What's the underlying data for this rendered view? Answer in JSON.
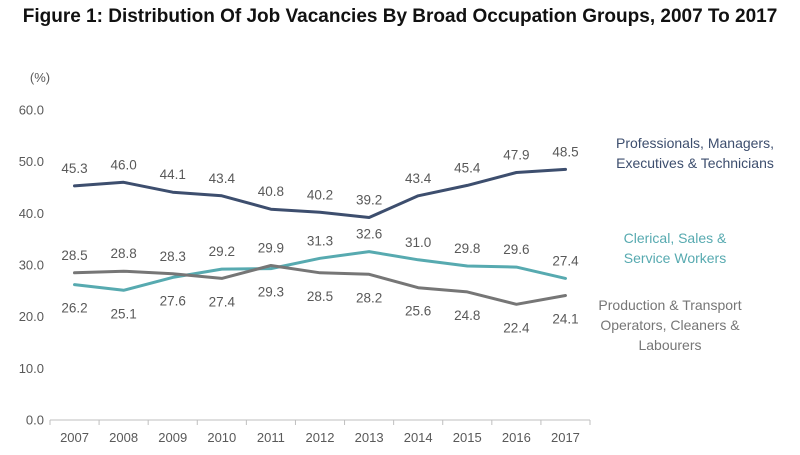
{
  "chart_data": {
    "type": "line",
    "title": "Figure 1: Distribution Of Job Vacancies By Broad Occupation Groups, 2007 To 2017",
    "ylabel": "(%)",
    "xlabel": "",
    "ylim": [
      0,
      60
    ],
    "yticks": [
      "0.0",
      "10.0",
      "20.0",
      "30.0",
      "40.0",
      "50.0",
      "60.0"
    ],
    "grid": false,
    "legend": "right, next to line ends",
    "x": [
      "2007",
      "2008",
      "2009",
      "2010",
      "2011",
      "2012",
      "2013",
      "2014",
      "2015",
      "2016",
      "2017"
    ],
    "series": [
      {
        "name": "Professionals, Managers, Executives & Technicians",
        "name_lines": [
          "Professionals, Managers,",
          "Executives & Technicians"
        ],
        "color": "#3d4e6e",
        "values": [
          45.3,
          46.0,
          44.1,
          43.4,
          40.8,
          40.2,
          39.2,
          43.4,
          45.4,
          47.9,
          48.5
        ],
        "labels": [
          "45.3",
          "46.0",
          "44.1",
          "43.4",
          "40.8",
          "40.2",
          "39.2",
          "43.4",
          "45.4",
          "47.9",
          "48.5"
        ],
        "label_pos": "above"
      },
      {
        "name": "Clerical, Sales & Service Workers",
        "name_lines": [
          "Clerical, Sales &",
          "Service Workers"
        ],
        "color": "#57aab0",
        "values": [
          26.2,
          25.1,
          27.6,
          29.2,
          29.3,
          31.3,
          32.6,
          31.0,
          29.8,
          29.6,
          27.4
        ],
        "labels": [
          "26.2",
          "25.1",
          "27.6",
          "29.2",
          "29.3",
          "31.3",
          "32.6",
          "31.0",
          "29.8",
          "29.6",
          "27.4"
        ],
        "label_pos": [
          "below",
          "below",
          "below",
          "above",
          "below",
          "above",
          "above",
          "above",
          "above",
          "above",
          "above"
        ]
      },
      {
        "name": "Production & Transport Operators, Cleaners & Labourers",
        "name_lines": [
          "Production & Transport",
          "Operators, Cleaners &",
          "Labourers"
        ],
        "color": "#767676",
        "values": [
          28.5,
          28.8,
          28.3,
          27.4,
          29.9,
          28.5,
          28.2,
          25.6,
          24.8,
          22.4,
          24.1
        ],
        "labels": [
          "28.5",
          "28.8",
          "28.3",
          "27.4",
          "29.9",
          "28.5",
          "28.2",
          "25.6",
          "24.8",
          "22.4",
          "24.1"
        ],
        "label_pos": [
          "above",
          "above",
          "above",
          "below",
          "above",
          "below",
          "below",
          "below",
          "below",
          "below",
          "below"
        ]
      }
    ]
  }
}
